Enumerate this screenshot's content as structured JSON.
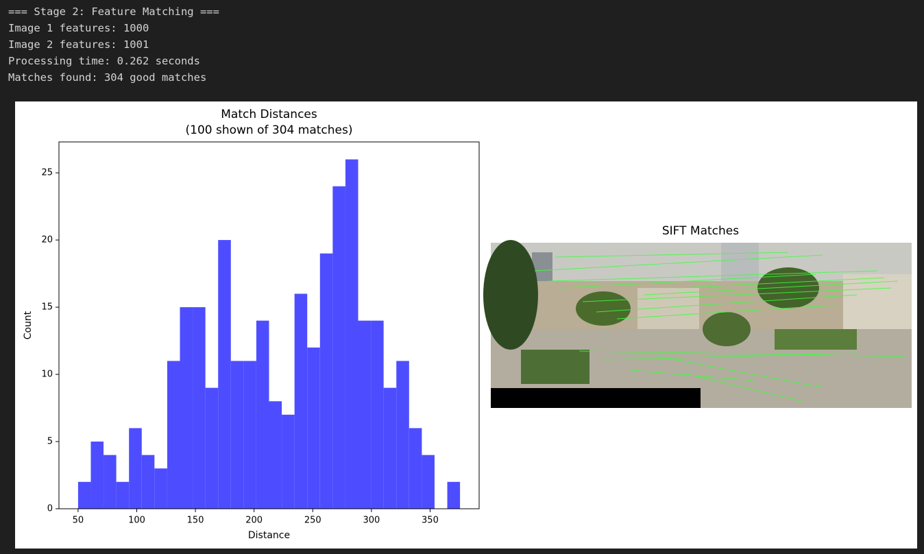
{
  "console": {
    "lines": [
      "=== Stage 2: Feature Matching ===",
      "Image 1 features: 1000",
      "Image 2 features: 1001",
      "Processing time: 0.262 seconds",
      "Matches found: 304 good matches"
    ]
  },
  "chart_data": {
    "type": "histogram",
    "title": "Match Distances",
    "subtitle": "(100 shown of 304 matches)",
    "x_label": "Distance",
    "y_label": "Count",
    "color": "#4d4dff",
    "bins": [
      50,
      60.85,
      71.7,
      82.55,
      93.4,
      104.25,
      115.1,
      125.95,
      136.8,
      147.65,
      158.5,
      169.35,
      180.2,
      191.05,
      201.9,
      212.75,
      223.6,
      234.45,
      245.3,
      256.15,
      267,
      277.85,
      288.7,
      299.55,
      310.4,
      321.25,
      332.1,
      342.95,
      353.8,
      364.65,
      375.5
    ],
    "values": [
      2,
      5,
      4,
      2,
      6,
      4,
      3,
      11,
      15,
      15,
      9,
      20,
      11,
      11,
      14,
      8,
      7,
      16,
      12,
      19,
      24,
      26,
      14,
      14,
      9,
      11,
      6,
      4,
      0,
      2
    ],
    "xlim": [
      33.7,
      391.8
    ],
    "ylim": [
      0,
      27.3
    ],
    "xticks": [
      50,
      100,
      150,
      200,
      250,
      300,
      350
    ],
    "yticks": [
      0,
      5,
      10,
      15,
      20,
      25
    ]
  },
  "image_panel": {
    "title": "SIFT Matches"
  }
}
